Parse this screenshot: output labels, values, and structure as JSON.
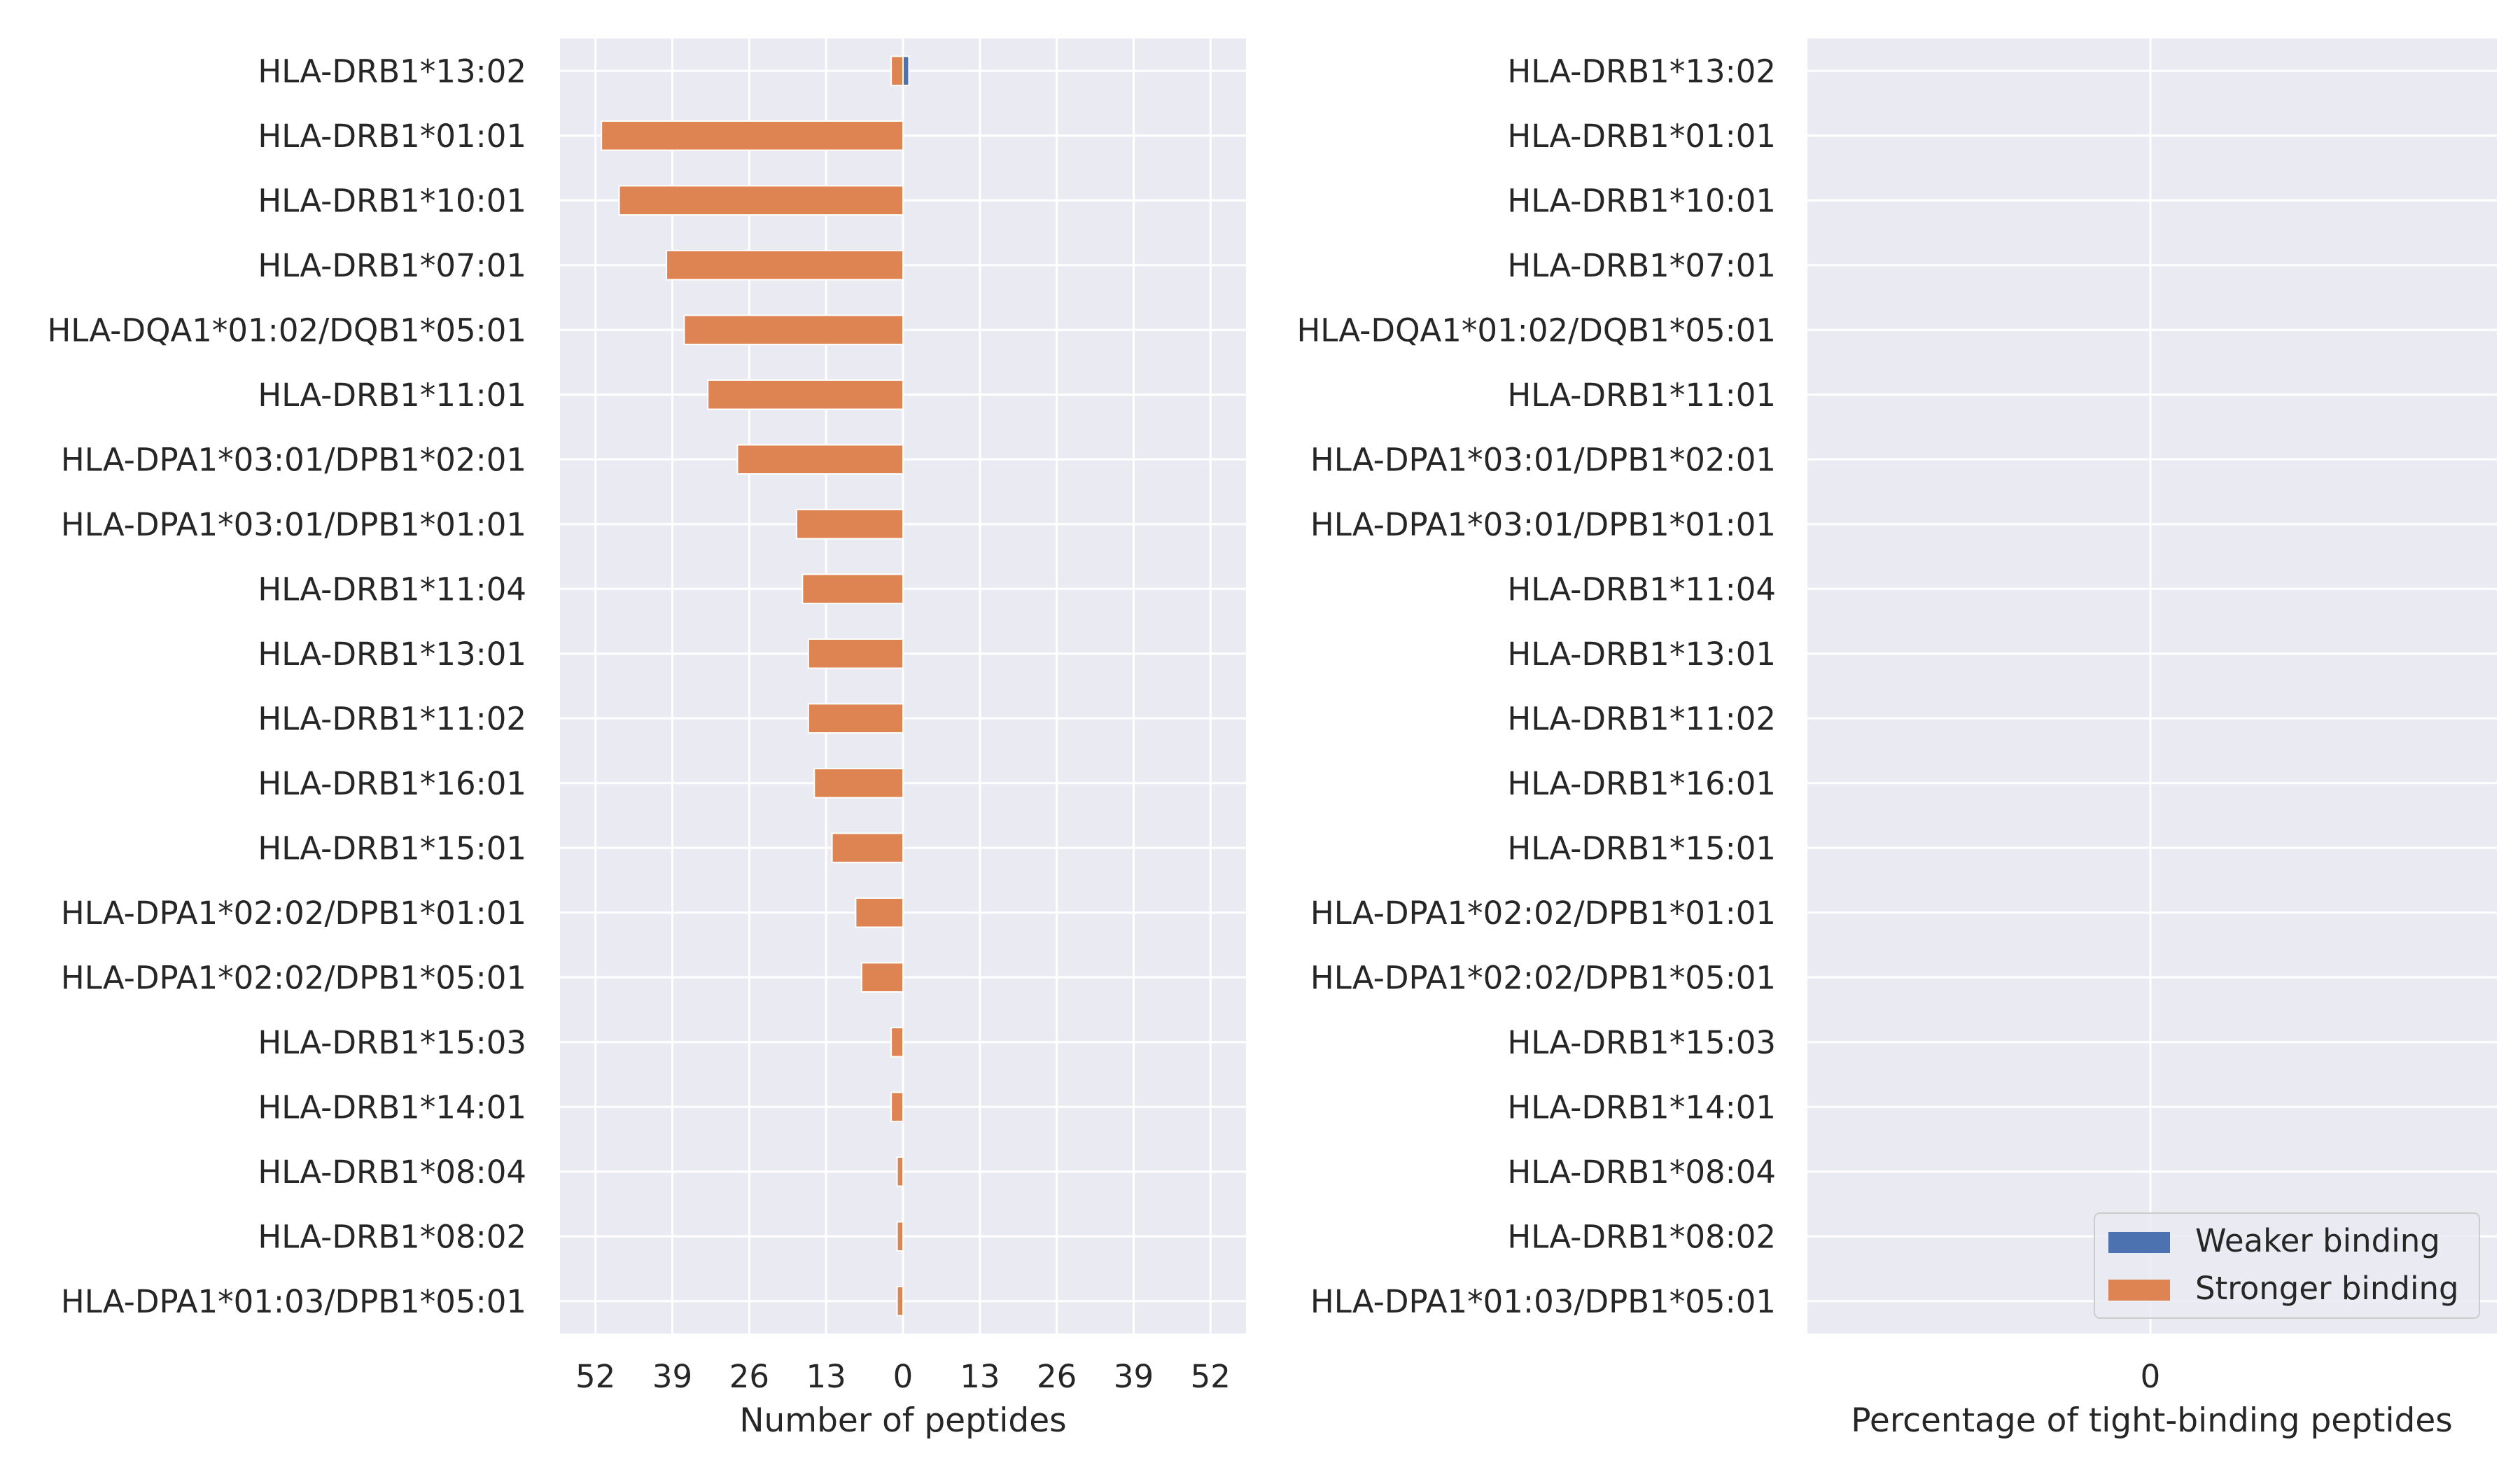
{
  "chart_data": [
    {
      "type": "bar",
      "orientation": "horizontal",
      "style": "diverging",
      "categories": [
        "HLA-DRB1*13:02",
        "HLA-DRB1*01:01",
        "HLA-DRB1*10:01",
        "HLA-DRB1*07:01",
        "HLA-DQA1*01:02/DQB1*05:01",
        "HLA-DRB1*11:01",
        "HLA-DPA1*03:01/DPB1*02:01",
        "HLA-DPA1*03:01/DPB1*01:01",
        "HLA-DRB1*11:04",
        "HLA-DRB1*13:01",
        "HLA-DRB1*11:02",
        "HLA-DRB1*16:01",
        "HLA-DRB1*15:01",
        "HLA-DPA1*02:02/DPB1*01:01",
        "HLA-DPA1*02:02/DPB1*05:01",
        "HLA-DRB1*15:03",
        "HLA-DRB1*14:01",
        "HLA-DRB1*08:04",
        "HLA-DRB1*08:02",
        "HLA-DPA1*01:03/DPB1*05:01"
      ],
      "series": [
        {
          "name": "Weaker binding",
          "color": "#4c72b0",
          "direction": "right",
          "values": [
            1,
            0,
            0,
            0,
            0,
            0,
            0,
            0,
            0,
            0,
            0,
            0,
            0,
            0,
            0,
            0,
            0,
            0,
            0,
            0
          ]
        },
        {
          "name": "Stronger binding",
          "color": "#dd8452",
          "direction": "left",
          "values": [
            2,
            51,
            48,
            40,
            37,
            33,
            28,
            18,
            17,
            16,
            16,
            15,
            12,
            8,
            7,
            2,
            2,
            1,
            1,
            1
          ]
        }
      ],
      "xlabel": "Number of peptides",
      "xticks": [
        -52,
        -39,
        -26,
        -13,
        0,
        13,
        26,
        39,
        52
      ],
      "xtick_labels": [
        "52",
        "39",
        "26",
        "13",
        "0",
        "13",
        "26",
        "39",
        "52"
      ],
      "xlim": [
        -58,
        58
      ],
      "grid": true
    },
    {
      "type": "bar",
      "orientation": "horizontal",
      "categories": [
        "HLA-DRB1*13:02",
        "HLA-DRB1*01:01",
        "HLA-DRB1*10:01",
        "HLA-DRB1*07:01",
        "HLA-DQA1*01:02/DQB1*05:01",
        "HLA-DRB1*11:01",
        "HLA-DPA1*03:01/DPB1*02:01",
        "HLA-DPA1*03:01/DPB1*01:01",
        "HLA-DRB1*11:04",
        "HLA-DRB1*13:01",
        "HLA-DRB1*11:02",
        "HLA-DRB1*16:01",
        "HLA-DRB1*15:01",
        "HLA-DPA1*02:02/DPB1*01:01",
        "HLA-DPA1*02:02/DPB1*05:01",
        "HLA-DRB1*15:03",
        "HLA-DRB1*14:01",
        "HLA-DRB1*08:04",
        "HLA-DRB1*08:02",
        "HLA-DPA1*01:03/DPB1*05:01"
      ],
      "values": [
        0,
        0,
        0,
        0,
        0,
        0,
        0,
        0,
        0,
        0,
        0,
        0,
        0,
        0,
        0,
        0,
        0,
        0,
        0,
        0
      ],
      "xlabel": "Percentage of tight-binding peptides",
      "xticks": [
        0
      ],
      "xtick_labels": [
        "0"
      ],
      "grid": true,
      "legend": {
        "placement": "bottom-right",
        "entries": [
          {
            "label": "Weaker binding",
            "color": "#4c72b0"
          },
          {
            "label": "Stronger binding",
            "color": "#dd8452"
          }
        ]
      }
    }
  ]
}
